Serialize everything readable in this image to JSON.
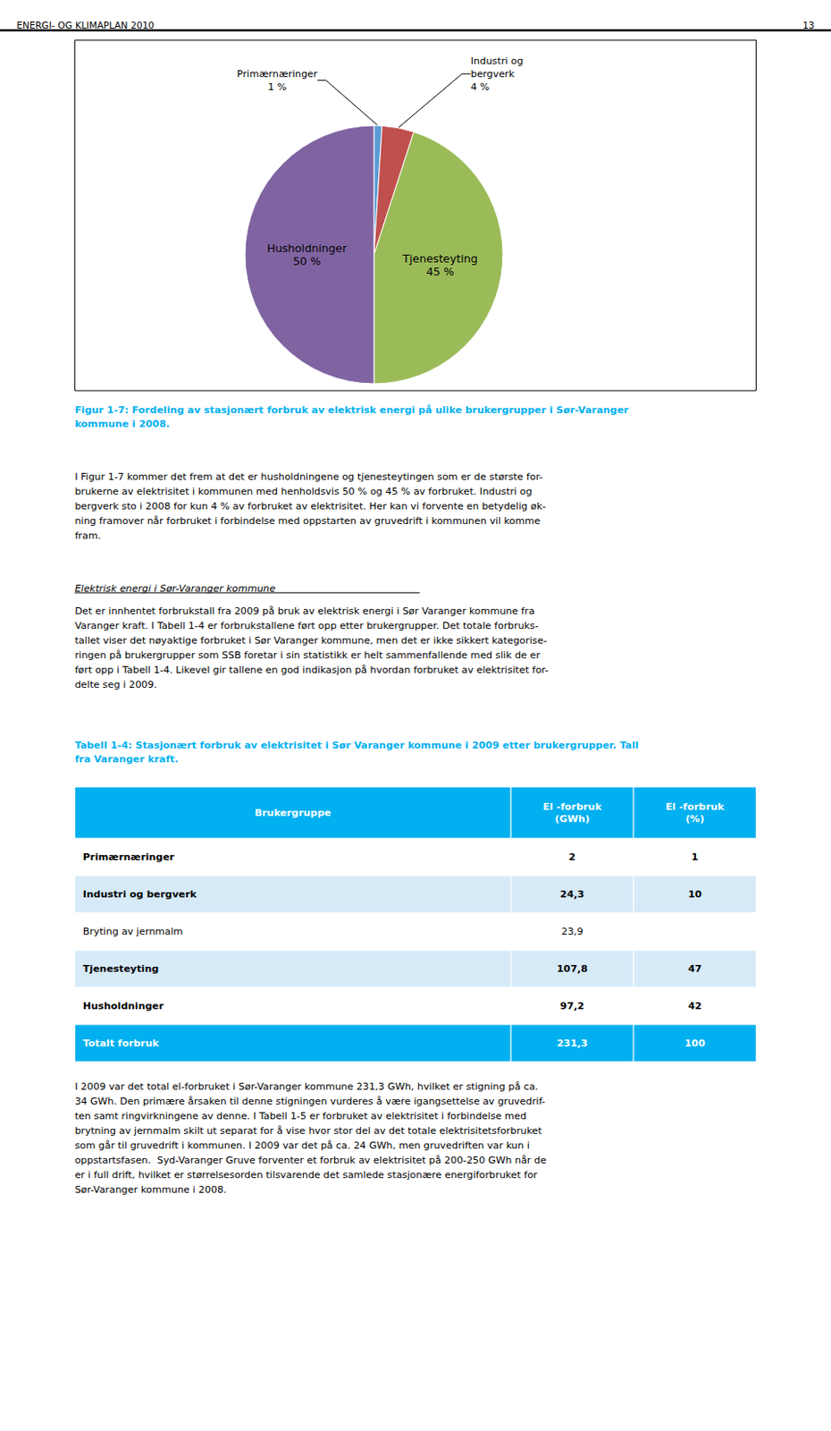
{
  "chart_data": {
    "type": "pie",
    "categories": [
      "Primærnæringer",
      "Industri og\nbergverk",
      "Tjenesteyting",
      "Husholdninger"
    ],
    "values": [
      1,
      4,
      45,
      50
    ],
    "value_labels": [
      "1 %",
      "4 %",
      "45 %",
      "50 %"
    ],
    "colors": [
      "#5B9BD5",
      "#C0504D",
      "#9BBB59",
      "#8064A2"
    ],
    "data_labels": true
  },
  "page_header": "ENERGI- OG KLIMAPLAN 2010",
  "page_number": "13",
  "background_color": "#FFFFFF",
  "caption_color": "#00B0F0",
  "figure_caption": "Figur 1-7: Fordeling av stasjonært forbruk av elektrisk energi på ulike brukergrupper i Sør-Varanger\nkommune i 2008.",
  "body_1": [
    "I Figur 1-7 kommer det frem at det er husholdningene og tjenesteytingen som er de største for-",
    "brukerne av elektrisitet i kommunen med henholdsvis 50 % og 45 % av forbruket. Industri og",
    "bergverk sto i 2008 for kun 4 % av forbruket av elektrisitet. Her kan vi forvente en betydelig øk-",
    "ning framover når forbruket i forbindelse med oppstarten av gruvedrift i kommunen vil komme",
    "fram."
  ],
  "section_title": "Elektrisk energi i Sør-Varanger kommune",
  "body_2": [
    "Det er innhentet forbrukstall fra 2009 på bruk av elektrisk energi i Sør Varanger kommune fra",
    "Varanger kraft. I Tabell 1-4 er forbrukstallene ført opp etter brukergrupper. Det totale forbruks-",
    "tallet viser det nøyaktige forbruket i Sør Varanger kommune, men det er ikke sikkert kategorise-",
    "ringen på brukergrupper som SSB foretar i sin statistikk er helt sammenfallende med slik de er",
    "ført opp i Tabell 1-4. Likevel gir tallene en god indikasjon på hvordan forbruket av elektrisitet for-",
    "delte seg i 2009."
  ],
  "table": {
    "caption": "Tabell 1-4: Stasjonært forbruk av elektrisitet i Sør Varanger kommune i 2009 etter brukergrupper. Tall\nfra Varanger kraft.",
    "header_color": "#00B0F0",
    "headers": [
      "Brukergruppe",
      "El -forbruk\n(GWh)",
      "El -forbruk\n(%)"
    ],
    "rows": [
      [
        "Primærnæringer",
        "2",
        "1"
      ],
      [
        "Industri og bergverk",
        "24,3",
        "10"
      ],
      [
        "Bryting av jernmalm",
        "23,9",
        ""
      ],
      [
        "Tjenesteyting",
        "107,8",
        "47"
      ],
      [
        "Husholdninger",
        "97,2",
        "42"
      ],
      [
        "Totalt forbruk",
        "231,3",
        "100"
      ]
    ],
    "bold": [
      true,
      true,
      false,
      true,
      true,
      true
    ],
    "row_colors": [
      "#FFFFFF",
      "#D6EAF8",
      "#FFFFFF",
      "#D6EAF8",
      "#FFFFFF",
      "#00B0F0"
    ],
    "text_colors": [
      "#000000",
      "#000000",
      "#000000",
      "#000000",
      "#000000",
      "#FFFFFF"
    ]
  },
  "body_3": [
    "I 2009 var det total el-forbruket i Sør-Varanger kommune 231,3 GWh, hvilket er stigning på ca.",
    "34 GWh. Den primære årsaken til denne stigningen vurderes å være igangsettelse av gruvedrif-",
    "ten samt ringvirkningene av denne. I Tabell 1-5 er forbruket av elektrisitet i forbindelse med",
    "brytning av jernmalm skilt ut separat for å vise hvor stor del av det totale elektrisitetsforbruket",
    "som går til gruvedrift i kommunen. I 2009 var det på ca. 24 GWh, men gruvedriften var kun i",
    "oppstartsfasen.  Syd-Varanger Gruve forventer et forbruk av elektrisitet på 200-250 GWh når de",
    "er i full drift, hvilket er størrelsesorden tilsvarende det samlede stasjonære energiforbruket for",
    "Sør-Varanger kommune i 2008."
  ]
}
